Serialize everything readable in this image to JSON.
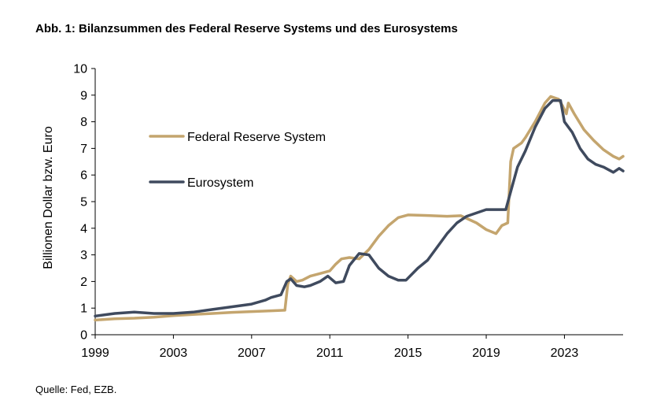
{
  "title": "Abb. 1: Bilanzsummen des Federal Reserve Systems und des Eurosystems",
  "source": "Quelle: Fed, EZB.",
  "chart_data": {
    "type": "line",
    "title": "Abb. 1: Bilanzsummen des Federal Reserve Systems und des Eurosystems",
    "xlabel": "",
    "ylabel": "Billionen Dollar bzw. Euro",
    "xlim": [
      1999,
      2026
    ],
    "ylim": [
      0,
      10
    ],
    "x_ticks": [
      1999,
      2003,
      2007,
      2011,
      2015,
      2019,
      2023
    ],
    "y_ticks": [
      0,
      1,
      2,
      3,
      4,
      5,
      6,
      7,
      8,
      9,
      10
    ],
    "grid": false,
    "legend": "upper-left, inside",
    "series": [
      {
        "name": "Federal Reserve System",
        "color": "#C4A56E",
        "points": [
          [
            1999.0,
            0.55
          ],
          [
            2000.0,
            0.6
          ],
          [
            2001.0,
            0.62
          ],
          [
            2002.0,
            0.66
          ],
          [
            2003.0,
            0.72
          ],
          [
            2004.0,
            0.76
          ],
          [
            2005.0,
            0.8
          ],
          [
            2006.0,
            0.84
          ],
          [
            2007.0,
            0.87
          ],
          [
            2008.0,
            0.9
          ],
          [
            2008.7,
            0.92
          ],
          [
            2008.85,
            1.9
          ],
          [
            2009.0,
            2.2
          ],
          [
            2009.3,
            2.0
          ],
          [
            2009.6,
            2.05
          ],
          [
            2010.0,
            2.2
          ],
          [
            2010.5,
            2.3
          ],
          [
            2011.0,
            2.4
          ],
          [
            2011.3,
            2.65
          ],
          [
            2011.6,
            2.85
          ],
          [
            2012.0,
            2.9
          ],
          [
            2012.5,
            2.85
          ],
          [
            2013.0,
            3.2
          ],
          [
            2013.5,
            3.7
          ],
          [
            2014.0,
            4.1
          ],
          [
            2014.5,
            4.4
          ],
          [
            2015.0,
            4.5
          ],
          [
            2016.0,
            4.48
          ],
          [
            2017.0,
            4.45
          ],
          [
            2017.7,
            4.47
          ],
          [
            2018.5,
            4.2
          ],
          [
            2019.0,
            3.95
          ],
          [
            2019.5,
            3.8
          ],
          [
            2019.8,
            4.1
          ],
          [
            2020.1,
            4.2
          ],
          [
            2020.25,
            6.5
          ],
          [
            2020.4,
            7.0
          ],
          [
            2020.8,
            7.2
          ],
          [
            2021.0,
            7.4
          ],
          [
            2021.5,
            8.0
          ],
          [
            2022.0,
            8.7
          ],
          [
            2022.3,
            8.95
          ],
          [
            2022.7,
            8.85
          ],
          [
            2022.9,
            8.6
          ],
          [
            2023.1,
            8.3
          ],
          [
            2023.2,
            8.7
          ],
          [
            2023.5,
            8.3
          ],
          [
            2024.0,
            7.7
          ],
          [
            2024.5,
            7.3
          ],
          [
            2025.0,
            6.95
          ],
          [
            2025.5,
            6.7
          ],
          [
            2025.8,
            6.6
          ],
          [
            2026.0,
            6.7
          ]
        ]
      },
      {
        "name": "Eurosystem",
        "color": "#3F4A5E",
        "points": [
          [
            1999.0,
            0.7
          ],
          [
            2000.0,
            0.8
          ],
          [
            2001.0,
            0.85
          ],
          [
            2002.0,
            0.8
          ],
          [
            2003.0,
            0.8
          ],
          [
            2004.0,
            0.85
          ],
          [
            2005.0,
            0.95
          ],
          [
            2006.0,
            1.05
          ],
          [
            2007.0,
            1.15
          ],
          [
            2007.7,
            1.3
          ],
          [
            2008.0,
            1.4
          ],
          [
            2008.5,
            1.5
          ],
          [
            2008.8,
            2.0
          ],
          [
            2009.0,
            2.1
          ],
          [
            2009.3,
            1.85
          ],
          [
            2009.7,
            1.8
          ],
          [
            2010.0,
            1.85
          ],
          [
            2010.5,
            2.0
          ],
          [
            2010.9,
            2.2
          ],
          [
            2011.3,
            1.95
          ],
          [
            2011.7,
            2.0
          ],
          [
            2012.0,
            2.6
          ],
          [
            2012.5,
            3.05
          ],
          [
            2013.0,
            3.0
          ],
          [
            2013.5,
            2.5
          ],
          [
            2014.0,
            2.2
          ],
          [
            2014.5,
            2.05
          ],
          [
            2014.9,
            2.05
          ],
          [
            2015.5,
            2.5
          ],
          [
            2016.0,
            2.8
          ],
          [
            2016.5,
            3.3
          ],
          [
            2017.0,
            3.8
          ],
          [
            2017.5,
            4.2
          ],
          [
            2018.0,
            4.45
          ],
          [
            2019.0,
            4.7
          ],
          [
            2019.5,
            4.7
          ],
          [
            2020.0,
            4.7
          ],
          [
            2020.3,
            5.5
          ],
          [
            2020.6,
            6.3
          ],
          [
            2021.0,
            6.9
          ],
          [
            2021.5,
            7.8
          ],
          [
            2022.0,
            8.5
          ],
          [
            2022.4,
            8.8
          ],
          [
            2022.8,
            8.8
          ],
          [
            2023.0,
            8.0
          ],
          [
            2023.4,
            7.6
          ],
          [
            2023.8,
            7.0
          ],
          [
            2024.2,
            6.6
          ],
          [
            2024.6,
            6.4
          ],
          [
            2025.0,
            6.3
          ],
          [
            2025.5,
            6.1
          ],
          [
            2025.8,
            6.25
          ],
          [
            2026.0,
            6.15
          ]
        ]
      }
    ]
  }
}
